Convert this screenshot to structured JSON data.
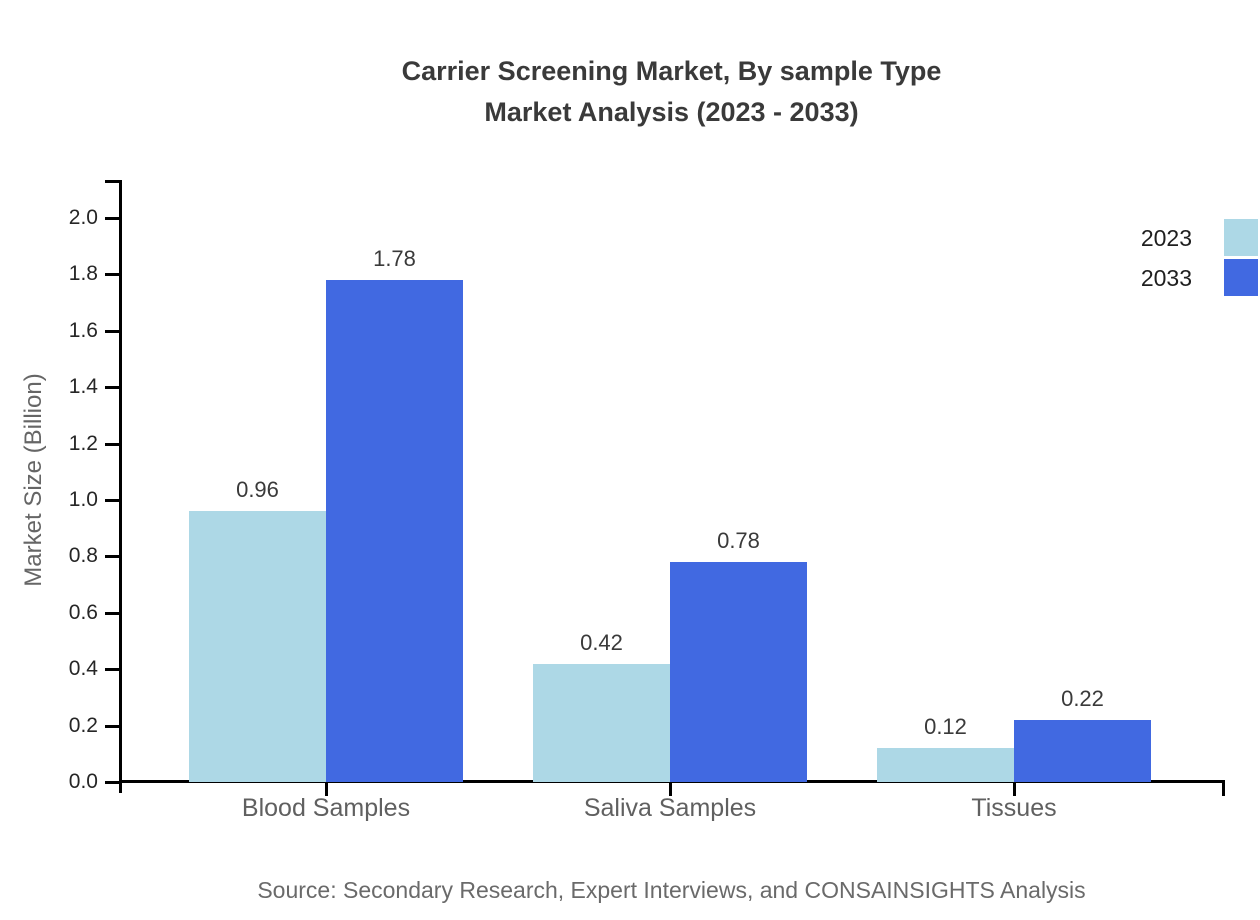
{
  "title": {
    "line1": "Carrier Screening Market, By sample Type",
    "line2": "Market Analysis (2023 - 2033)"
  },
  "source": "Source: Secondary Research, Expert Interviews, and CONSAINSIGHTS Analysis",
  "colors": {
    "series_2023": "#ADD8E6",
    "series_2033": "#4169E1",
    "axis": "#000000",
    "title_text": "#3a3a3a",
    "category_text": "#606060",
    "tick_text": "#262626",
    "value_text": "#3a3a3a",
    "source_text": "#6a6a6a"
  },
  "chart_data": {
    "type": "bar",
    "title": "Carrier Screening Market, By sample Type Market Analysis (2023 - 2033)",
    "categories": [
      "Blood Samples",
      "Saliva Samples",
      "Tissues"
    ],
    "series": [
      {
        "name": "2023",
        "color": "#ADD8E6",
        "values": [
          0.96,
          0.42,
          0.12
        ]
      },
      {
        "name": "2033",
        "color": "#4169E1",
        "values": [
          1.78,
          0.78,
          0.22
        ]
      }
    ],
    "value_labels": [
      "0.96",
      "1.78",
      "0.42",
      "0.78",
      "0.12",
      "0.22"
    ],
    "xlabel": "",
    "ylabel": "Market Size (Billion)",
    "ylim": [
      0,
      2.0
    ],
    "yticks": [
      0.0,
      0.2,
      0.4,
      0.6,
      0.8,
      1.0,
      1.2,
      1.4,
      1.6,
      1.8,
      2.0
    ],
    "grid": false,
    "legend_position": "upper right",
    "legend_entries": [
      "2023",
      "2033"
    ]
  }
}
